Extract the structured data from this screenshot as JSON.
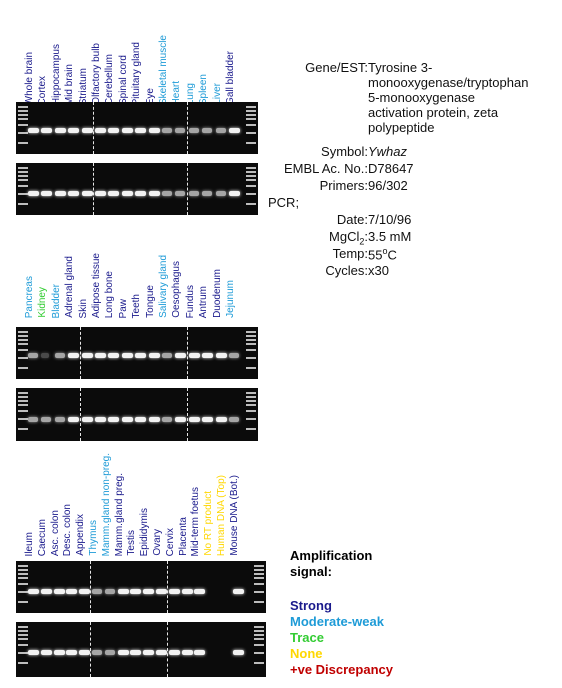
{
  "colors": {
    "strong": "#1a1a8c",
    "moderate": "#1e9bd7",
    "trace": "#33cc33",
    "none": "#ffd700",
    "discrepancy": "#c00000"
  },
  "panels": [
    {
      "lanes": [
        {
          "label": "Whole brain",
          "signal": "strong"
        },
        {
          "label": "Cortex",
          "signal": "strong"
        },
        {
          "label": "Hippocampus",
          "signal": "strong"
        },
        {
          "label": "Mid brain",
          "signal": "strong"
        },
        {
          "label": "Striatum",
          "signal": "strong"
        },
        {
          "label": "Olfactory bulb",
          "signal": "strong"
        },
        {
          "label": "Cerebellum",
          "signal": "strong"
        },
        {
          "label": "Spinal cord",
          "signal": "strong"
        },
        {
          "label": "Pituitary gland",
          "signal": "strong"
        },
        {
          "label": "Eye",
          "signal": "strong"
        },
        {
          "label": "Skeletal muscle",
          "signal": "moderate"
        },
        {
          "label": "Heart",
          "signal": "moderate"
        },
        {
          "label": "Lung",
          "signal": "moderate"
        },
        {
          "label": "Spleen",
          "signal": "moderate"
        },
        {
          "label": "Liver",
          "signal": "moderate"
        },
        {
          "label": "Gall bladder",
          "signal": "strong"
        }
      ]
    },
    {
      "lanes": [
        {
          "label": "Pancreas",
          "signal": "moderate"
        },
        {
          "label": "Kidney",
          "signal": "trace"
        },
        {
          "label": "Bladder",
          "signal": "moderate"
        },
        {
          "label": "Adrenal gland",
          "signal": "strong"
        },
        {
          "label": "Skin",
          "signal": "strong"
        },
        {
          "label": "Adipose tissue",
          "signal": "strong"
        },
        {
          "label": "Long bone",
          "signal": "strong"
        },
        {
          "label": "Paw",
          "signal": "strong"
        },
        {
          "label": "Teeth",
          "signal": "strong"
        },
        {
          "label": "Tongue",
          "signal": "strong"
        },
        {
          "label": "Salivary gland",
          "signal": "moderate"
        },
        {
          "label": "Oesophagus",
          "signal": "strong"
        },
        {
          "label": "Fundus",
          "signal": "strong"
        },
        {
          "label": "Antrum",
          "signal": "strong"
        },
        {
          "label": "Duodenum",
          "signal": "strong"
        },
        {
          "label": "Jejunum",
          "signal": "moderate"
        }
      ]
    },
    {
      "lanes": [
        {
          "label": "Ileum",
          "signal": "strong"
        },
        {
          "label": "Caecum",
          "signal": "strong"
        },
        {
          "label": "Asc. colon",
          "signal": "strong"
        },
        {
          "label": "Desc. colon",
          "signal": "strong"
        },
        {
          "label": "Appendix",
          "signal": "strong"
        },
        {
          "label": "Thymus",
          "signal": "moderate"
        },
        {
          "label": "Mamm.gland non-preg.",
          "signal": "moderate"
        },
        {
          "label": "Mamm.gland preg.",
          "signal": "strong"
        },
        {
          "label": "Testis",
          "signal": "strong"
        },
        {
          "label": "Epididymis",
          "signal": "strong"
        },
        {
          "label": "Ovary",
          "signal": "strong"
        },
        {
          "label": "Cervix",
          "signal": "strong"
        },
        {
          "label": "Placenta",
          "signal": "strong"
        },
        {
          "label": "Mid-term foetus",
          "signal": "strong"
        },
        {
          "label": "No RT product",
          "signal": "none"
        },
        {
          "label": "Human DNA (Top)",
          "signal": "none"
        },
        {
          "label": "Mouse DNA (Bot.)",
          "signal": "strong"
        }
      ]
    }
  ],
  "info": {
    "gene_key": "Gene/EST:",
    "gene_lines": [
      "Tyrosine 3-",
      "monooxygenase/tryptophan",
      "5-monooxygenase",
      "activation protein, zeta",
      "polypeptide"
    ],
    "symbol_key": "Symbol:",
    "symbol_val": "Ywhaz",
    "embl_key": "EMBL Ac. No.:",
    "embl_val": "D78647",
    "primers_key": "Primers:",
    "primers_val": "96/302",
    "pcr_key": "PCR;",
    "date_key": "Date:",
    "date_val": "7/10/96",
    "mgcl_key": "MgCl",
    "mgcl_sub": "2",
    "mgcl_colon": ":",
    "mgcl_val": "3.5 mM",
    "temp_key": "Temp:",
    "temp_val": "55",
    "temp_sup": "o",
    "temp_unit": "C",
    "cycles_key": "Cycles:",
    "cycles_val": "x30"
  },
  "legend": {
    "title_1": "Amplification",
    "title_2": "signal:",
    "strong": "Strong",
    "moderate": "Moderate-weak",
    "trace": "Trace",
    "none": "None",
    "discrepancy": "+ve Discrepancy"
  }
}
